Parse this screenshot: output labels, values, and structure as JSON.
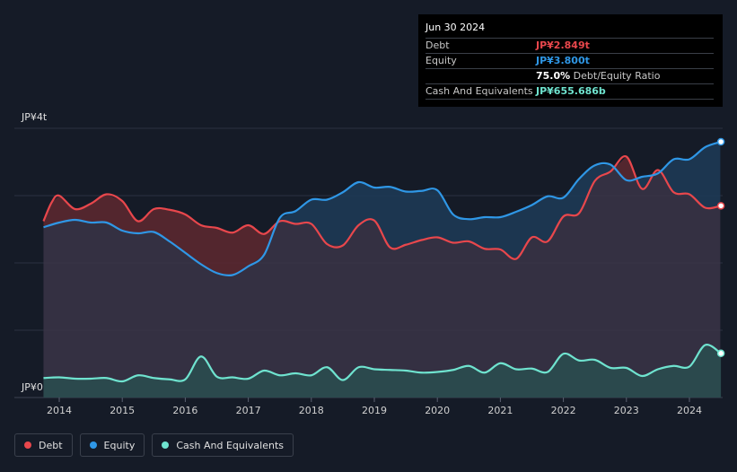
{
  "tooltip": {
    "date": "Jun 30 2024",
    "debt_label": "Debt",
    "debt_value": "JP¥2.849t",
    "equity_label": "Equity",
    "equity_value": "JP¥3.800t",
    "ratio_value": "75.0%",
    "ratio_label": "Debt/Equity Ratio",
    "cash_label": "Cash And Equivalents",
    "cash_value": "JP¥655.686b"
  },
  "legend": [
    {
      "label": "Debt",
      "color": "#e8474c"
    },
    {
      "label": "Equity",
      "color": "#2f97e6"
    },
    {
      "label": "Cash And Equivalents",
      "color": "#6fe3cf"
    }
  ],
  "colors": {
    "debt": "#e8474c",
    "equity": "#2f97e6",
    "cash": "#6fe3cf",
    "debt_fill": "#5a2830",
    "equity_fill": "#1d3a55",
    "common_fill": "#3a3448",
    "cash_fill": "#2a4c4f"
  },
  "chart_data": {
    "type": "area",
    "title": "",
    "y_axis_labels": [
      "JP¥4t",
      "JP¥0"
    ],
    "ylim": [
      0,
      4
    ],
    "xlim": [
      2013.75,
      2024.5
    ],
    "x_ticks": [
      "2014",
      "2015",
      "2016",
      "2017",
      "2018",
      "2019",
      "2020",
      "2021",
      "2022",
      "2023",
      "2024"
    ],
    "unit": "JP¥ trillions",
    "series": [
      {
        "name": "Debt",
        "points": [
          [
            2013.75,
            2.62
          ],
          [
            2013.88,
            2.9
          ],
          [
            2014.0,
            3.0
          ],
          [
            2014.25,
            2.8
          ],
          [
            2014.5,
            2.88
          ],
          [
            2014.75,
            3.02
          ],
          [
            2015.0,
            2.92
          ],
          [
            2015.25,
            2.62
          ],
          [
            2015.5,
            2.8
          ],
          [
            2015.75,
            2.79
          ],
          [
            2016.0,
            2.72
          ],
          [
            2016.25,
            2.56
          ],
          [
            2016.5,
            2.52
          ],
          [
            2016.75,
            2.45
          ],
          [
            2017.0,
            2.56
          ],
          [
            2017.25,
            2.43
          ],
          [
            2017.5,
            2.62
          ],
          [
            2017.75,
            2.58
          ],
          [
            2018.0,
            2.58
          ],
          [
            2018.25,
            2.28
          ],
          [
            2018.5,
            2.26
          ],
          [
            2018.75,
            2.56
          ],
          [
            2019.0,
            2.63
          ],
          [
            2019.25,
            2.23
          ],
          [
            2019.5,
            2.27
          ],
          [
            2019.75,
            2.34
          ],
          [
            2020.0,
            2.38
          ],
          [
            2020.25,
            2.3
          ],
          [
            2020.5,
            2.32
          ],
          [
            2020.75,
            2.21
          ],
          [
            2021.0,
            2.2
          ],
          [
            2021.25,
            2.06
          ],
          [
            2021.5,
            2.38
          ],
          [
            2021.75,
            2.32
          ],
          [
            2022.0,
            2.69
          ],
          [
            2022.25,
            2.74
          ],
          [
            2022.5,
            3.22
          ],
          [
            2022.75,
            3.36
          ],
          [
            2023.0,
            3.58
          ],
          [
            2023.25,
            3.1
          ],
          [
            2023.5,
            3.38
          ],
          [
            2023.75,
            3.05
          ],
          [
            2024.0,
            3.02
          ],
          [
            2024.25,
            2.82
          ],
          [
            2024.5,
            2.849
          ]
        ]
      },
      {
        "name": "Equity",
        "points": [
          [
            2013.75,
            2.53
          ],
          [
            2014.0,
            2.6
          ],
          [
            2014.25,
            2.64
          ],
          [
            2014.5,
            2.6
          ],
          [
            2014.75,
            2.6
          ],
          [
            2015.0,
            2.48
          ],
          [
            2015.25,
            2.44
          ],
          [
            2015.5,
            2.46
          ],
          [
            2015.75,
            2.32
          ],
          [
            2016.0,
            2.15
          ],
          [
            2016.25,
            1.98
          ],
          [
            2016.5,
            1.85
          ],
          [
            2016.75,
            1.82
          ],
          [
            2017.0,
            1.95
          ],
          [
            2017.25,
            2.12
          ],
          [
            2017.5,
            2.67
          ],
          [
            2017.75,
            2.77
          ],
          [
            2018.0,
            2.94
          ],
          [
            2018.25,
            2.94
          ],
          [
            2018.5,
            3.05
          ],
          [
            2018.75,
            3.2
          ],
          [
            2019.0,
            3.12
          ],
          [
            2019.25,
            3.13
          ],
          [
            2019.5,
            3.06
          ],
          [
            2019.75,
            3.07
          ],
          [
            2020.0,
            3.08
          ],
          [
            2020.25,
            2.72
          ],
          [
            2020.5,
            2.65
          ],
          [
            2020.75,
            2.68
          ],
          [
            2021.0,
            2.68
          ],
          [
            2021.25,
            2.76
          ],
          [
            2021.5,
            2.86
          ],
          [
            2021.75,
            2.99
          ],
          [
            2022.0,
            2.97
          ],
          [
            2022.25,
            3.25
          ],
          [
            2022.5,
            3.45
          ],
          [
            2022.75,
            3.46
          ],
          [
            2023.0,
            3.23
          ],
          [
            2023.25,
            3.28
          ],
          [
            2023.5,
            3.33
          ],
          [
            2023.75,
            3.54
          ],
          [
            2024.0,
            3.54
          ],
          [
            2024.25,
            3.72
          ],
          [
            2024.5,
            3.8
          ]
        ]
      },
      {
        "name": "Cash And Equivalents",
        "points": [
          [
            2013.75,
            0.29
          ],
          [
            2014.0,
            0.3
          ],
          [
            2014.25,
            0.28
          ],
          [
            2014.5,
            0.28
          ],
          [
            2014.75,
            0.29
          ],
          [
            2015.0,
            0.24
          ],
          [
            2015.25,
            0.33
          ],
          [
            2015.5,
            0.29
          ],
          [
            2015.75,
            0.27
          ],
          [
            2016.0,
            0.27
          ],
          [
            2016.25,
            0.61
          ],
          [
            2016.5,
            0.31
          ],
          [
            2016.75,
            0.3
          ],
          [
            2017.0,
            0.28
          ],
          [
            2017.25,
            0.4
          ],
          [
            2017.5,
            0.33
          ],
          [
            2017.75,
            0.36
          ],
          [
            2018.0,
            0.33
          ],
          [
            2018.25,
            0.45
          ],
          [
            2018.5,
            0.26
          ],
          [
            2018.75,
            0.45
          ],
          [
            2019.0,
            0.42
          ],
          [
            2019.25,
            0.41
          ],
          [
            2019.5,
            0.4
          ],
          [
            2019.75,
            0.37
          ],
          [
            2020.0,
            0.38
          ],
          [
            2020.25,
            0.41
          ],
          [
            2020.5,
            0.47
          ],
          [
            2020.75,
            0.37
          ],
          [
            2021.0,
            0.51
          ],
          [
            2021.25,
            0.42
          ],
          [
            2021.5,
            0.43
          ],
          [
            2021.75,
            0.38
          ],
          [
            2022.0,
            0.65
          ],
          [
            2022.25,
            0.55
          ],
          [
            2022.5,
            0.56
          ],
          [
            2022.75,
            0.44
          ],
          [
            2023.0,
            0.44
          ],
          [
            2023.25,
            0.32
          ],
          [
            2023.5,
            0.42
          ],
          [
            2023.75,
            0.47
          ],
          [
            2024.0,
            0.46
          ],
          [
            2024.25,
            0.78
          ],
          [
            2024.5,
            0.656
          ]
        ]
      }
    ]
  }
}
